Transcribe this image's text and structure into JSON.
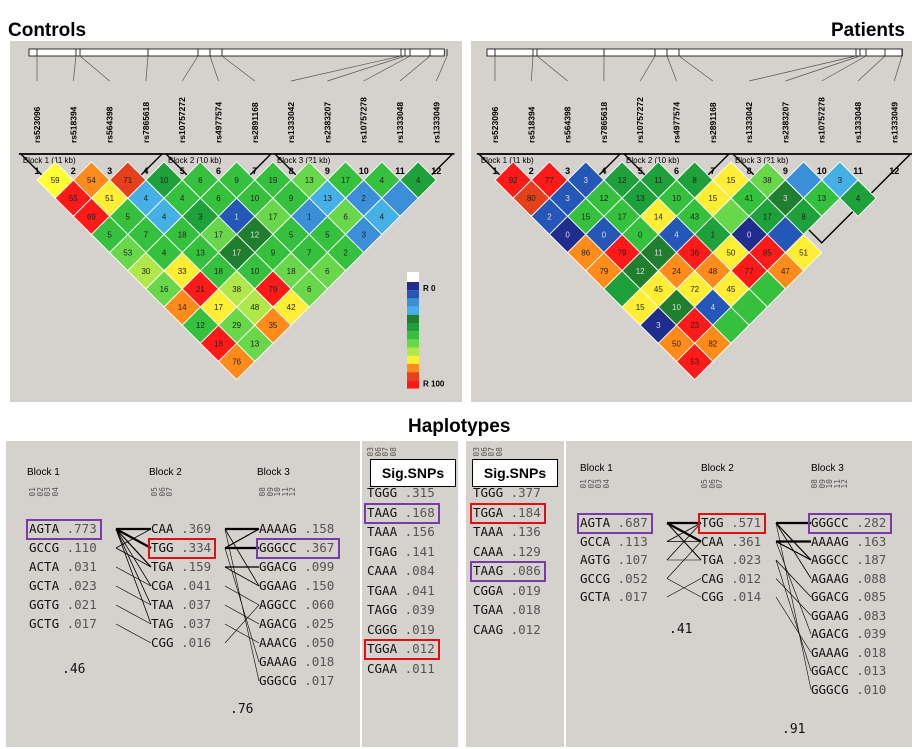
{
  "titles": {
    "controls": "Controls",
    "patients": "Patients",
    "haplotypes": "Haplotypes"
  },
  "snps": [
    "rs523096",
    "rs518394",
    "rs564398",
    "rs7865618",
    "rs10757272",
    "rs4977574",
    "rs2891168",
    "rs1333042",
    "rs2383207",
    "rs10757278",
    "rs1333048",
    "rs1333049"
  ],
  "marker_numbers": [
    "1",
    "2",
    "3",
    "4",
    "5",
    "6",
    "7",
    "8",
    "9",
    "10",
    "11",
    "12"
  ],
  "legend": {
    "top": "R 0",
    "bottom": "R 100",
    "colors": [
      "#1f2d8e",
      "#2457b8",
      "#3a8fd8",
      "#45b0e6",
      "#1f7f2f",
      "#1ea03a",
      "#35c03e",
      "#68d84a",
      "#b0e84a",
      "#ffee33",
      "#ff8c1a",
      "#e6401a",
      "#ff1a1a"
    ]
  },
  "controls": {
    "blocks": [
      "Block 1 (11 kb)",
      "Block 2 (10 kb)",
      "Block 3 (21 kb)"
    ],
    "matrix": [
      [
        {
          "c": "#ffff33",
          "v": "59"
        },
        {
          "c": "#ff8c1a",
          "v": "54"
        },
        {
          "c": "#e6401a",
          "v": "71"
        },
        {
          "c": "#1ea03a",
          "v": "10"
        },
        {
          "c": "#35c03e",
          "v": "6"
        },
        {
          "c": "#35c03e",
          "v": "9"
        },
        {
          "c": "#35c03e",
          "v": "19"
        },
        {
          "c": "#68d84a",
          "v": "13"
        },
        {
          "c": "#35c03e",
          "v": "17"
        },
        {
          "c": "#35c03e",
          "v": "4"
        },
        {
          "c": "#1ea03a",
          "v": "4"
        }
      ],
      [
        {
          "c": "#ff1a1a",
          "v": "55"
        },
        {
          "c": "#ffee33",
          "v": "51"
        },
        {
          "c": "#45b0e6",
          "v": "4"
        },
        {
          "c": "#35c03e",
          "v": "4"
        },
        {
          "c": "#35c03e",
          "v": "6"
        },
        {
          "c": "#35c03e",
          "v": "10"
        },
        {
          "c": "#35c03e",
          "v": "9"
        },
        {
          "c": "#45b0e6",
          "v": "13"
        },
        {
          "c": "#3a8fd8",
          "v": "2"
        },
        {
          "c": "#3a8fd8",
          "v": ""
        }
      ],
      [
        {
          "c": "#ff1a1a",
          "v": "69"
        },
        {
          "c": "#35c03e",
          "v": "5"
        },
        {
          "c": "#45b0e6",
          "v": "4"
        },
        {
          "c": "#1ea03a",
          "v": "3"
        },
        {
          "c": "#2457b8",
          "v": "1"
        },
        {
          "c": "#68d84a",
          "v": "17"
        },
        {
          "c": "#3a8fd8",
          "v": "1"
        },
        {
          "c": "#68d84a",
          "v": "6"
        },
        {
          "c": "#45b0e6",
          "v": "4"
        }
      ],
      [
        {
          "c": "#35c03e",
          "v": "5"
        },
        {
          "c": "#35c03e",
          "v": "7"
        },
        {
          "c": "#35c03e",
          "v": "18"
        },
        {
          "c": "#68d84a",
          "v": "17"
        },
        {
          "c": "#1f7f2f",
          "v": "12"
        },
        {
          "c": "#35c03e",
          "v": "5"
        },
        {
          "c": "#35c03e",
          "v": "5"
        },
        {
          "c": "#3a8fd8",
          "v": "3"
        }
      ],
      [
        {
          "c": "#68d84a",
          "v": "53"
        },
        {
          "c": "#35c03e",
          "v": "4"
        },
        {
          "c": "#35c03e",
          "v": "13"
        },
        {
          "c": "#1f7f2f",
          "v": "17"
        },
        {
          "c": "#35c03e",
          "v": "9"
        },
        {
          "c": "#35c03e",
          "v": "7"
        },
        {
          "c": "#35c03e",
          "v": "2"
        }
      ],
      [
        {
          "c": "#b0e84a",
          "v": "30"
        },
        {
          "c": "#ffee33",
          "v": "33"
        },
        {
          "c": "#35c03e",
          "v": "18"
        },
        {
          "c": "#35c03e",
          "v": "10"
        },
        {
          "c": "#68d84a",
          "v": "18"
        },
        {
          "c": "#68d84a",
          "v": "6"
        }
      ],
      [
        {
          "c": "#68d84a",
          "v": "16"
        },
        {
          "c": "#ff1a1a",
          "v": "21"
        },
        {
          "c": "#b0e84a",
          "v": "38"
        },
        {
          "c": "#ff1a1a",
          "v": "79"
        },
        {
          "c": "#68d84a",
          "v": "6"
        }
      ],
      [
        {
          "c": "#ff8c1a",
          "v": "14"
        },
        {
          "c": "#ffee33",
          "v": "17"
        },
        {
          "c": "#b0e84a",
          "v": "48"
        },
        {
          "c": "#ffee33",
          "v": "42"
        }
      ],
      [
        {
          "c": "#35c03e",
          "v": "12"
        },
        {
          "c": "#68d84a",
          "v": "29"
        },
        {
          "c": "#ff8c1a",
          "v": "35"
        }
      ],
      [
        {
          "c": "#ff1a1a",
          "v": "18"
        },
        {
          "c": "#68d84a",
          "v": "13"
        }
      ],
      [
        {
          "c": "#ff8c1a",
          "v": "76"
        }
      ]
    ],
    "labeled_pairs_note": ""
  },
  "patients": {
    "blocks": [
      "Block 1 (11 kb)",
      "Block 2 (10 kb)",
      "Block 3 (21 kb)"
    ],
    "matrix": [
      [
        {
          "c": "#ff1a1a",
          "v": "92"
        },
        {
          "c": "#ff1a1a",
          "v": "77"
        },
        {
          "c": "#2457b8",
          "v": "3"
        },
        {
          "c": "#1ea03a",
          "v": "12"
        },
        {
          "c": "#1ea03a",
          "v": "11"
        },
        {
          "c": "#1ea03a",
          "v": "8"
        },
        {
          "c": "#ffee33",
          "v": "15"
        },
        {
          "c": "#68d84a",
          "v": "38"
        },
        {
          "c": "#3a8fd8",
          "v": ""
        },
        {
          "c": "#45b0e6",
          "v": "3"
        }
      ],
      [
        {
          "c": "#e6401a",
          "v": "80"
        },
        {
          "c": "#2457b8",
          "v": "3"
        },
        {
          "c": "#35c03e",
          "v": "12"
        },
        {
          "c": "#1ea03a",
          "v": "13"
        },
        {
          "c": "#35c03e",
          "v": "10"
        },
        {
          "c": "#ffee33",
          "v": "15"
        },
        {
          "c": "#35c03e",
          "v": "41"
        },
        {
          "c": "#1f7f2f",
          "v": "3"
        },
        {
          "c": "#35c03e",
          "v": "13"
        },
        {
          "c": "#1ea03a",
          "v": "4"
        }
      ],
      [
        {
          "c": "#2457b8",
          "v": "2"
        },
        {
          "c": "#35c03e",
          "v": "15"
        },
        {
          "c": "#35c03e",
          "v": "17"
        },
        {
          "c": "#ffee33",
          "v": "14"
        },
        {
          "c": "#35c03e",
          "v": "43"
        },
        {
          "c": "#68d84a",
          "v": ""
        },
        {
          "c": "#1ea03a",
          "v": "17"
        },
        {
          "c": "#1ea03a",
          "v": "8"
        }
      ],
      [
        {
          "c": "#1f2d8e",
          "v": "0"
        },
        {
          "c": "#2457b8",
          "v": "0"
        },
        {
          "c": "#35c03e",
          "v": "0"
        },
        {
          "c": "#2457b8",
          "v": "4"
        },
        {
          "c": "#1ea03a",
          "v": "1"
        },
        {
          "c": "#1f2d8e",
          "v": "0"
        },
        {
          "c": "#2457b8",
          "v": ""
        }
      ],
      [
        {
          "c": "#ff8c1a",
          "v": "86"
        },
        {
          "c": "#ff1a1a",
          "v": "79"
        },
        {
          "c": "#1f7f2f",
          "v": "11"
        },
        {
          "c": "#ff1a1a",
          "v": "36"
        },
        {
          "c": "#ffee33",
          "v": "50"
        },
        {
          "c": "#ff1a1a",
          "v": "85"
        },
        {
          "c": "#ffee33",
          "v": "51"
        }
      ],
      [
        {
          "c": "#ff8c1a",
          "v": "79"
        },
        {
          "c": "#1f7f2f",
          "v": "12"
        },
        {
          "c": "#ff8c1a",
          "v": "24"
        },
        {
          "c": "#ff8c1a",
          "v": "48"
        },
        {
          "c": "#ff1a1a",
          "v": "77"
        },
        {
          "c": "#ff8c1a",
          "v": "47"
        }
      ],
      [
        {
          "c": "#1ea03a",
          "v": ""
        },
        {
          "c": "#ffee33",
          "v": "45"
        },
        {
          "c": "#ffee33",
          "v": "72"
        },
        {
          "c": "#ffee33",
          "v": "45"
        },
        {
          "c": "#35c03e",
          "v": ""
        }
      ],
      [
        {
          "c": "#ffee33",
          "v": "15"
        },
        {
          "c": "#1f7f2f",
          "v": "10"
        },
        {
          "c": "#2457b8",
          "v": "4"
        },
        {
          "c": "#35c03e",
          "v": ""
        }
      ],
      [
        {
          "c": "#1f2d8e",
          "v": "3"
        },
        {
          "c": "#ff1a1a",
          "v": "23"
        },
        {
          "c": "#35c03e",
          "v": ""
        }
      ],
      [
        {
          "c": "#ff8c1a",
          "v": "50"
        },
        {
          "c": "#ff8c1a",
          "v": "82"
        }
      ],
      [
        {
          "c": "#ff1a1a",
          "v": "53"
        }
      ]
    ]
  },
  "hap_left": {
    "sig_label_a": "Sig.SNPs",
    "blocks": {
      "b1": "Block 1",
      "b2": "Block 2",
      "b3": "Block 3"
    },
    "idx_b1": [
      "01",
      "02",
      "03",
      "04"
    ],
    "idx_b2": [
      "05",
      "06",
      "07"
    ],
    "idx_b3": [
      "08",
      "09",
      "10",
      "11",
      "12"
    ],
    "idx_sig": [
      "03",
      "06",
      "07",
      "08"
    ],
    "block1": [
      [
        "AGTA",
        ".773"
      ],
      [
        "GCCG",
        ".110"
      ],
      [
        "ACTA",
        ".031"
      ],
      [
        "GCTA",
        ".023"
      ],
      [
        "GGTG",
        ".021"
      ],
      [
        "GCTG",
        ".017"
      ]
    ],
    "block2": [
      [
        "CAA",
        ".369"
      ],
      [
        "TGG",
        ".334"
      ],
      [
        "TGA",
        ".159"
      ],
      [
        "CGA",
        ".041"
      ],
      [
        "TAA",
        ".037"
      ],
      [
        "TAG",
        ".037"
      ],
      [
        "CGG",
        ".016"
      ]
    ],
    "block3": [
      [
        "AAAAG",
        ".158"
      ],
      [
        "GGGCC",
        ".367"
      ],
      [
        "GGACG",
        ".099"
      ],
      [
        "GGAAG",
        ".150"
      ],
      [
        "AGGCC",
        ".060"
      ],
      [
        "AGACG",
        ".025"
      ],
      [
        "AAACG",
        ".050"
      ],
      [
        "GAAAG",
        ".018"
      ],
      [
        "GGGCG",
        ".017"
      ]
    ],
    "sig": [
      [
        "TGGG",
        ".315"
      ],
      [
        "TAAG",
        ".168"
      ],
      [
        "TAAA",
        ".156"
      ],
      [
        "TGAG",
        ".141"
      ],
      [
        "CAAA",
        ".084"
      ],
      [
        "TGAA",
        ".041"
      ],
      [
        "TAGG",
        ".039"
      ],
      [
        "CGGG",
        ".019"
      ],
      [
        "TGGA",
        ".012"
      ],
      [
        "CGAA",
        ".011"
      ]
    ],
    "pct1": ".46",
    "pct2": ".76"
  },
  "hap_right": {
    "sig_label_b": "Sig.SNPs",
    "blocks": {
      "b1": "Block 1",
      "b2": "Block 2",
      "b3": "Block 3"
    },
    "idx_b1": [
      "01",
      "02",
      "03",
      "04"
    ],
    "idx_b2": [
      "05",
      "06",
      "07"
    ],
    "idx_b3": [
      "08",
      "09",
      "10",
      "11",
      "12"
    ],
    "idx_sig": [
      "03",
      "06",
      "07",
      "08"
    ],
    "sig": [
      [
        "TGGG",
        ".377"
      ],
      [
        "TGGA",
        ".184"
      ],
      [
        "TAAA",
        ".136"
      ],
      [
        "CAAA",
        ".129"
      ],
      [
        "TAAG",
        ".086"
      ],
      [
        "CGGA",
        ".019"
      ],
      [
        "TGAA",
        ".018"
      ],
      [
        "CAAG",
        ".012"
      ]
    ],
    "block1": [
      [
        "AGTA",
        ".687"
      ],
      [
        "GCCA",
        ".113"
      ],
      [
        "AGTG",
        ".107"
      ],
      [
        "GCCG",
        ".052"
      ],
      [
        "GCTA",
        ".017"
      ]
    ],
    "block2": [
      [
        "TGG",
        ".571"
      ],
      [
        "CAA",
        ".361"
      ],
      [
        "TGA",
        ".023"
      ],
      [
        "CAG",
        ".012"
      ],
      [
        "CGG",
        ".014"
      ]
    ],
    "block3": [
      [
        "GGGCC",
        ".282"
      ],
      [
        "AAAAG",
        ".163"
      ],
      [
        "AGGCC",
        ".187"
      ],
      [
        "AGAAG",
        ".088"
      ],
      [
        "GGACG",
        ".085"
      ],
      [
        "GGAAG",
        ".083"
      ],
      [
        "AGACG",
        ".039"
      ],
      [
        "GAAAG",
        ".018"
      ],
      [
        "GGACC",
        ".013"
      ],
      [
        "GGGCG",
        ".010"
      ]
    ],
    "pct1": ".41",
    "pct2": ".91"
  }
}
